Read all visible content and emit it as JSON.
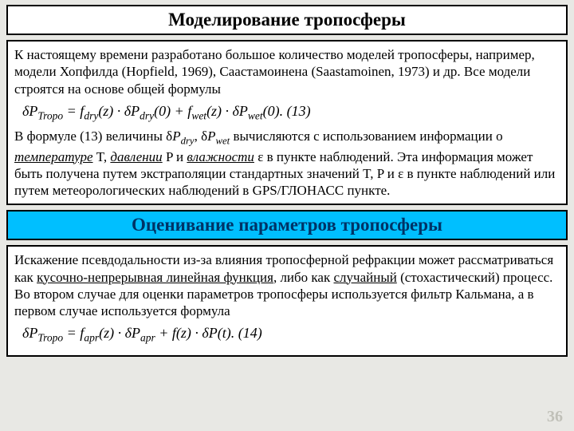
{
  "header1": "Моделирование тропосферы",
  "box1": {
    "p1": "К настоящему времени разработано большое количество моделей тропосферы, например, модели Хопфилда (Hopfield, 1969), Саастамоинена (Saastamoinen, 1973) и др. Все модели строятся на основе общей формулы",
    "formula1_pre": "δP",
    "formula1_sub1": "Tropo",
    "formula1_mid1": " = f",
    "formula1_sub2": "dry",
    "formula1_mid2": "(z) · δP",
    "formula1_sub3": "dry",
    "formula1_mid3": "(0) + f",
    "formula1_sub4": "wet",
    "formula1_mid4": "(z) · δP",
    "formula1_sub5": "wet",
    "formula1_mid5": "(0).   (13)",
    "p2a": "В формуле (13) величины δ",
    "p2b": "P",
    "p2sub1": "dry",
    "p2c": ", δ",
    "p2d": "P",
    "p2sub2": "wet",
    "p2e": " вычисляются с использованием информации о ",
    "p2u1": "температуре",
    "p2f": " T, ",
    "p2u2": "давлении",
    "p2g": " P и ",
    "p2u3": "влажности",
    "p2h": " ε в пункте наблюдений. Эта информация может быть получена путем экстраполяции стандартных значений T, P и ε в пункте наблюдений или путем метеорологических наблюдений в GPS/ГЛОНАСС пункте."
  },
  "header2": "Оценивание параметров тропосферы",
  "box2": {
    "p1a": "Искажение псевдодальности из-за влияния тропосферной рефракции может рассматриваться как ",
    "p1u1": "кусочно-непрерывная линейная функция",
    "p1b": ", либо как ",
    "p1u2": "случайный",
    "p1c": " (стохастический) процесс. Во втором случае для оценки параметров тропосферы используется фильтр Кальмана, а в первом случае используется формула",
    "formula2_pre": "δP",
    "formula2_sub1": "Tropo",
    "formula2_mid1": " = f",
    "formula2_sub2": "apr",
    "formula2_mid2": "(z) · δP",
    "formula2_sub3": "apr",
    "formula2_mid3": " + f(z) · δP(t).   (14)"
  },
  "pageNum": "36",
  "colors": {
    "bg": "#e8e8e4",
    "cyan": "#00bfff",
    "cyanText": "#003366",
    "border": "#000000",
    "boxbg": "#ffffff"
  }
}
